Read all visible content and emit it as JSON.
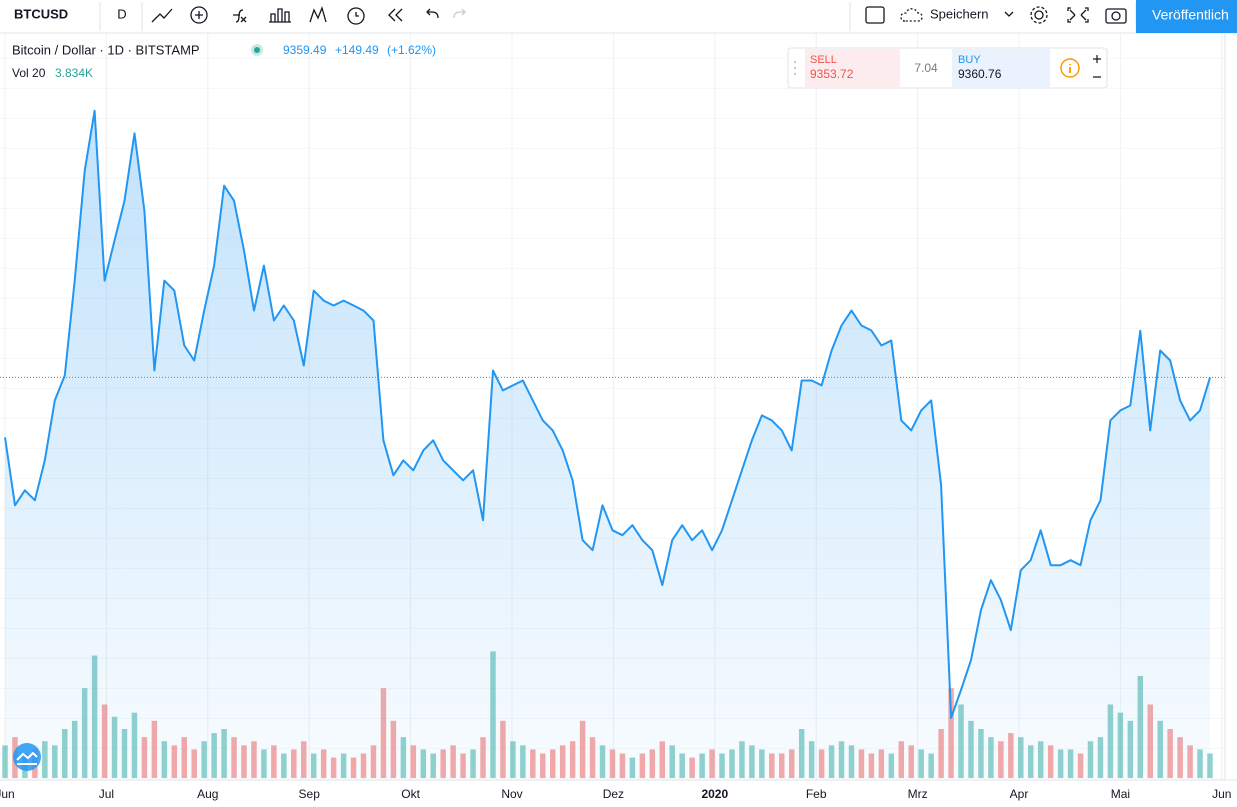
{
  "toolbar": {
    "symbol": "BTCUSD",
    "interval": "D",
    "save": "Speichern",
    "publish": "Veröffentlich"
  },
  "legend": {
    "title": "Bitcoin / Dollar · 1D · BITSTAMP",
    "change": "+149.49",
    "change_pct": "(+1.62%)",
    "volume_label": "Vol 20",
    "volume_value": "3.834K"
  },
  "trade": {
    "sell_label": "SELL",
    "sell": "9353.72",
    "spread": "7.04",
    "buy_label": "BUY",
    "buy": "9360.76"
  },
  "chart_data": {
    "type": "area",
    "color": "#2196f3",
    "last_price": 9359.49,
    "ylim": [
      4040,
      13920
    ],
    "y2lim": [
      0,
      60
    ],
    "x_labels": [
      "Jun",
      "Jul",
      "Aug",
      "Sep",
      "Okt",
      "Nov",
      "Dez",
      "2020",
      "Feb",
      "Mrz",
      "Apr",
      "Mai",
      "Jun"
    ],
    "values": [
      8563,
      7662,
      7860,
      7728,
      8258,
      9054,
      9386,
      10645,
      12104,
      12900,
      10645,
      11176,
      11706,
      12600,
      11573,
      9452,
      10645,
      10513,
      9783,
      9584,
      10247,
      10844,
      11905,
      11706,
      11043,
      10247,
      10844,
      10115,
      10314,
      10115,
      9518,
      10513,
      10380,
      10314,
      10380,
      10314,
      10247,
      10115,
      8524,
      8060,
      8258,
      8126,
      8391,
      8524,
      8258,
      8126,
      7993,
      8126,
      7463,
      9452,
      9187,
      9253,
      9319,
      9054,
      8789,
      8656,
      8391,
      7993,
      7198,
      7065,
      7662,
      7330,
      7264,
      7397,
      7198,
      7065,
      6601,
      7198,
      7397,
      7198,
      7330,
      7065,
      7330,
      7728,
      8126,
      8524,
      8855,
      8789,
      8656,
      8391,
      9319,
      9319,
      9253,
      9717,
      10049,
      10247,
      10049,
      9982,
      9783,
      9850,
      8789,
      8656,
      8921,
      9054,
      7927,
      4840,
      5209,
      5606,
      6270,
      6667,
      6402,
      6004,
      6800,
      6932,
      7330,
      6866,
      6866,
      6932,
      6866,
      7463,
      7728,
      8789,
      8921,
      8987,
      9980,
      8656,
      9717,
      9584,
      9054,
      8789,
      8921,
      9359
    ],
    "volume": [
      8,
      10,
      6,
      7,
      9,
      8,
      12,
      14,
      22,
      30,
      18,
      15,
      12,
      16,
      10,
      14,
      9,
      8,
      10,
      7,
      9,
      11,
      12,
      10,
      8,
      9,
      7,
      8,
      6,
      7,
      9,
      6,
      7,
      5,
      6,
      5,
      6,
      8,
      22,
      14,
      10,
      8,
      7,
      6,
      7,
      8,
      6,
      7,
      10,
      31,
      14,
      9,
      8,
      7,
      6,
      7,
      8,
      9,
      14,
      10,
      8,
      7,
      6,
      5,
      6,
      7,
      9,
      8,
      6,
      5,
      6,
      7,
      6,
      7,
      9,
      8,
      7,
      6,
      6,
      7,
      12,
      9,
      7,
      8,
      9,
      8,
      7,
      6,
      7,
      6,
      9,
      8,
      7,
      6,
      12,
      22,
      18,
      14,
      12,
      10,
      9,
      11,
      10,
      8,
      9,
      8,
      7,
      7,
      6,
      9,
      10,
      18,
      16,
      14,
      25,
      18,
      14,
      12,
      10,
      8,
      7,
      6
    ]
  }
}
